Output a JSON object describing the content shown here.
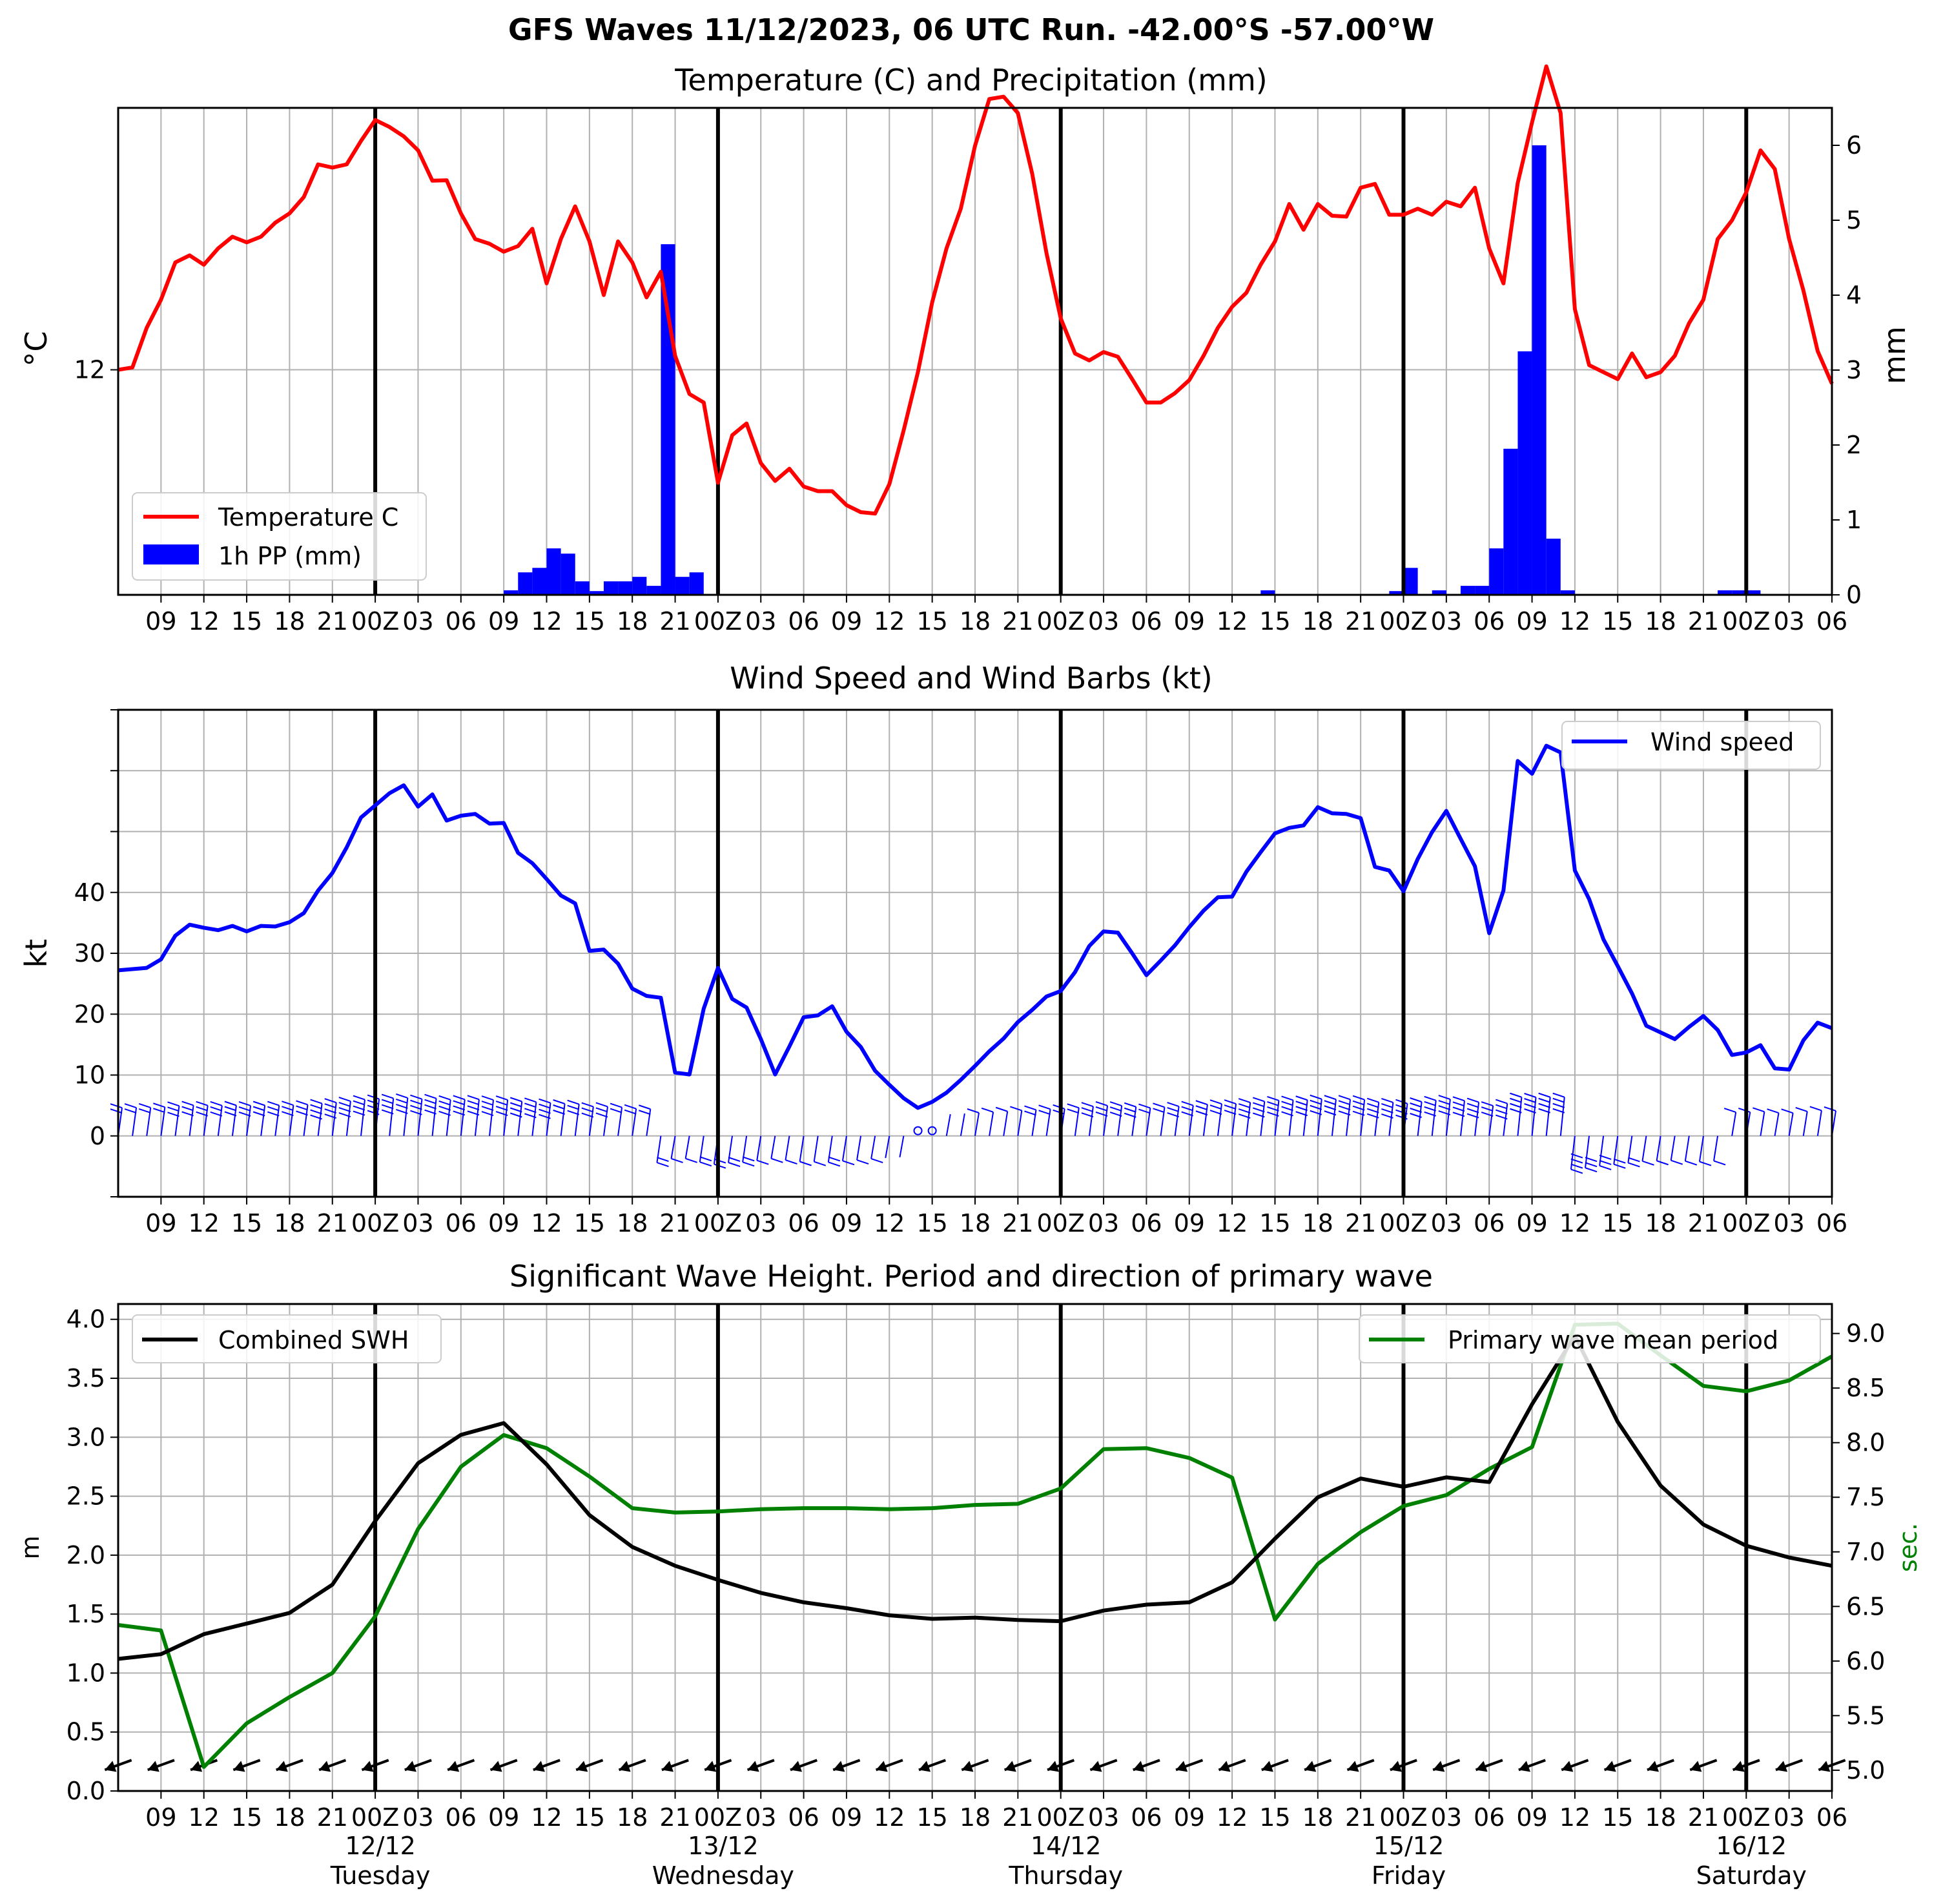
{
  "title": "GFS Waves 11/12/2023, 06 UTC Run. -42.00°S -57.00°W",
  "time_axis": {
    "tick_labels": [
      "09",
      "12",
      "15",
      "18",
      "21",
      "00Z",
      "03",
      "06",
      "09",
      "12",
      "15",
      "18",
      "21",
      "00Z",
      "03",
      "06",
      "09",
      "12",
      "15",
      "18",
      "21",
      "00Z",
      "03",
      "06",
      "09",
      "12",
      "15",
      "18",
      "21",
      "00Z",
      "03",
      "06",
      "09",
      "12",
      "15",
      "18",
      "21",
      "00Z",
      "03",
      "06"
    ],
    "day_labels": [
      {
        "date": "12/12",
        "weekday": "Tuesday"
      },
      {
        "date": "13/12",
        "weekday": "Wednesday"
      },
      {
        "date": "14/12",
        "weekday": "Thursday"
      },
      {
        "date": "15/12",
        "weekday": "Friday"
      },
      {
        "date": "16/12",
        "weekday": "Saturday"
      }
    ]
  },
  "colors": {
    "temperature": "#ff0000",
    "precip": "#0000ff",
    "wind": "#0000ff",
    "swh": "#000000",
    "period": "#008000",
    "midnight_line": "#000000",
    "grid": "#b0b0b0"
  },
  "chart_data": [
    {
      "type": "line",
      "title": "Temperature (C) and Precipitation (mm)",
      "ylabel": "°C",
      "y2label": "mm",
      "ylim": [
        7.18,
        17.61
      ],
      "y_ticks": [
        12
      ],
      "y2lim": [
        0,
        6.5
      ],
      "y2_ticks": [
        0,
        1,
        2,
        3,
        4,
        5,
        6
      ],
      "grid": true,
      "legend": {
        "position": "lower-left",
        "entries": [
          "Temperature C",
          "1h PP (mm)"
        ]
      },
      "series": [
        {
          "name": "Temperature C",
          "x_hours_from_06z_11_12": [
            0,
            1,
            2,
            3,
            4,
            5,
            6,
            7,
            8,
            9,
            10,
            11,
            12,
            13,
            14,
            15,
            16,
            17,
            18,
            19,
            20,
            21,
            22,
            23,
            24,
            25,
            26,
            27,
            28,
            29,
            30,
            31,
            32,
            33,
            34,
            35,
            36,
            37,
            38,
            39,
            40,
            41,
            42,
            43,
            44,
            45,
            46,
            47,
            48,
            49,
            50,
            51,
            52,
            53,
            54,
            55,
            56,
            57,
            58,
            59,
            60,
            61,
            62,
            63,
            64,
            65,
            66,
            67,
            68,
            69,
            70,
            71,
            72,
            73,
            74,
            75,
            76,
            77,
            78,
            79,
            80,
            81,
            82,
            83,
            84,
            85,
            86,
            87,
            88,
            89,
            90,
            91,
            92,
            93,
            94,
            95,
            96,
            97,
            98,
            99,
            100,
            101,
            102,
            103,
            104,
            105,
            106,
            107,
            108,
            109,
            110,
            111,
            112,
            113,
            114,
            115,
            116,
            117,
            118,
            119,
            120
          ],
          "values": [
            12.0,
            12.05,
            12.9,
            13.5,
            14.3,
            14.45,
            14.25,
            14.6,
            14.85,
            14.73,
            14.85,
            15.15,
            15.35,
            15.7,
            16.4,
            16.33,
            16.4,
            16.9,
            17.35,
            17.2,
            17.0,
            16.7,
            16.05,
            16.06,
            15.35,
            14.8,
            14.7,
            14.53,
            14.65,
            15.02,
            13.85,
            14.8,
            15.5,
            14.75,
            13.6,
            14.75,
            14.3,
            13.55,
            14.1,
            12.3,
            11.48,
            11.3,
            9.58,
            10.6,
            10.85,
            10.0,
            9.62,
            9.88,
            9.5,
            9.4,
            9.4,
            9.1,
            8.95,
            8.92,
            9.55,
            10.7,
            11.95,
            13.45,
            14.6,
            15.45,
            16.8,
            17.8,
            17.85,
            17.5,
            16.2,
            14.5,
            13.1,
            12.35,
            12.2,
            12.38,
            12.28,
            11.8,
            11.3,
            11.3,
            11.5,
            11.78,
            12.3,
            12.9,
            13.35,
            13.65,
            14.25,
            14.75,
            15.55,
            15.0,
            15.55,
            15.3,
            15.28,
            15.9,
            15.98,
            15.32,
            15.32,
            15.45,
            15.32,
            15.6,
            15.5,
            15.9,
            14.6,
            13.85,
            16.0,
            17.3,
            18.5,
            17.5,
            13.3,
            12.1,
            11.95,
            11.8,
            12.35,
            11.84,
            11.95,
            12.3,
            13.0,
            13.5,
            14.8,
            15.2,
            15.8,
            16.7,
            16.3,
            14.8,
            13.7,
            12.4,
            11.7
          ]
        },
        {
          "name": "1h PP (mm)",
          "type": "bar",
          "axis": "right",
          "bars": [
            {
              "x": 27.5,
              "value": 0.06
            },
            {
              "x": 28.5,
              "value": 0.3
            },
            {
              "x": 29.5,
              "value": 0.36
            },
            {
              "x": 30.5,
              "value": 0.62
            },
            {
              "x": 31.5,
              "value": 0.55
            },
            {
              "x": 32.5,
              "value": 0.18
            },
            {
              "x": 33.5,
              "value": 0.05
            },
            {
              "x": 34.5,
              "value": 0.18
            },
            {
              "x": 35.5,
              "value": 0.18
            },
            {
              "x": 36.5,
              "value": 0.24
            },
            {
              "x": 37.5,
              "value": 0.12
            },
            {
              "x": 38.5,
              "value": 4.68
            },
            {
              "x": 39.5,
              "value": 0.24
            },
            {
              "x": 40.5,
              "value": 0.3
            },
            {
              "x": 80.5,
              "value": 0.06
            },
            {
              "x": 89.5,
              "value": 0.05
            },
            {
              "x": 90.5,
              "value": 0.36
            },
            {
              "x": 92.5,
              "value": 0.06
            },
            {
              "x": 94.5,
              "value": 0.12
            },
            {
              "x": 95.5,
              "value": 0.12
            },
            {
              "x": 96.5,
              "value": 0.62
            },
            {
              "x": 97.5,
              "value": 1.95
            },
            {
              "x": 98.5,
              "value": 3.25
            },
            {
              "x": 99.5,
              "value": 6.0
            },
            {
              "x": 100.5,
              "value": 0.75
            },
            {
              "x": 101.5,
              "value": 0.06
            },
            {
              "x": 112.5,
              "value": 0.06
            },
            {
              "x": 113.5,
              "value": 0.06
            },
            {
              "x": 114.5,
              "value": 0.06
            }
          ]
        }
      ]
    },
    {
      "type": "line",
      "title": "Wind Speed and Wind Barbs (kt)",
      "ylabel": "kt",
      "ylim": [
        -10,
        70
      ],
      "y_ticks": [
        0,
        10,
        20,
        30,
        40
      ],
      "grid": true,
      "legend": {
        "position": "top-right",
        "entries": [
          "Wind speed"
        ]
      },
      "series": [
        {
          "name": "Wind speed",
          "x_hours_from_06z_11_12": [
            0,
            1,
            2,
            3,
            4,
            5,
            6,
            7,
            8,
            9,
            10,
            11,
            12,
            13,
            14,
            15,
            16,
            17,
            18,
            19,
            20,
            21,
            22,
            23,
            24,
            25,
            26,
            27,
            28,
            29,
            30,
            31,
            32,
            33,
            34,
            35,
            36,
            37,
            38,
            39,
            40,
            41,
            42,
            43,
            44,
            45,
            46,
            47,
            48,
            49,
            50,
            51,
            52,
            53,
            54,
            55,
            56,
            57,
            58,
            59,
            60,
            61,
            62,
            63,
            64,
            65,
            66,
            67,
            68,
            69,
            70,
            71,
            72,
            73,
            74,
            75,
            76,
            77,
            78,
            79,
            80,
            81,
            82,
            83,
            84,
            85,
            86,
            87,
            88,
            89,
            90,
            91,
            92,
            93,
            94,
            95,
            96,
            97,
            98,
            99,
            100,
            101,
            102,
            103,
            104,
            105,
            106,
            107,
            108,
            109,
            110,
            111,
            112,
            113,
            114,
            115,
            116,
            117,
            118,
            119,
            120
          ],
          "values": [
            27.2,
            27.4,
            27.6,
            29.0,
            32.9,
            34.7,
            34.2,
            33.8,
            34.5,
            33.6,
            34.5,
            34.4,
            35.1,
            36.6,
            40.3,
            43.2,
            47.4,
            52.3,
            54.3,
            56.3,
            57.6,
            54.1,
            56.1,
            51.8,
            52.6,
            52.9,
            51.3,
            51.4,
            46.5,
            44.8,
            42.2,
            39.5,
            38.2,
            30.4,
            30.6,
            28.3,
            24.2,
            23.0,
            22.7,
            10.4,
            10.1,
            20.9,
            27.6,
            22.5,
            21.1,
            15.9,
            10.1,
            14.7,
            19.5,
            19.8,
            21.3,
            17.1,
            14.6,
            10.7,
            8.4,
            6.2,
            4.6,
            5.6,
            7.1,
            9.2,
            11.5,
            13.9,
            16.0,
            18.7,
            20.7,
            22.9,
            23.8,
            26.9,
            31.2,
            33.6,
            33.4,
            30.0,
            26.4,
            28.8,
            31.3,
            34.3,
            37.0,
            39.2,
            39.3,
            43.4,
            46.6,
            49.7,
            50.6,
            51.0,
            54.0,
            53.0,
            52.9,
            52.2,
            44.2,
            43.6,
            40.2,
            45.5,
            49.9,
            53.4,
            48.8,
            44.3,
            33.3,
            40.3,
            61.6,
            59.5,
            64.1,
            63.0,
            43.6,
            38.9,
            32.3,
            27.9,
            23.4,
            18.1,
            17.0,
            15.9,
            17.9,
            19.7,
            17.4,
            13.3,
            13.7,
            14.9,
            11.1,
            10.9,
            15.7,
            18.6,
            17.7
          ]
        }
      ]
    },
    {
      "type": "line",
      "title": "Significant Wave Height. Period and direction of primary wave",
      "ylabel": "m",
      "y2label": "sec.",
      "ylim": [
        0.0,
        4.13
      ],
      "y_ticks": [
        0.0,
        0.5,
        1.0,
        1.5,
        2.0,
        2.5,
        3.0,
        3.5,
        4.0
      ],
      "y2lim": [
        4.81,
        9.27
      ],
      "y2_ticks": [
        5.0,
        5.5,
        6.0,
        6.5,
        7.0,
        7.5,
        8.0,
        8.5,
        9.0
      ],
      "grid": true,
      "legend": {
        "left": {
          "position": "top-left",
          "entries": [
            "Combined SWH"
          ]
        },
        "right": {
          "position": "top-right",
          "entries": [
            "Primary wave mean period"
          ]
        }
      },
      "series": [
        {
          "name": "Combined SWH",
          "axis": "left",
          "x_hours_from_06z_11_12": [
            0,
            3,
            6,
            9,
            12,
            15,
            18,
            21,
            24,
            27,
            30,
            33,
            36,
            39,
            42,
            45,
            48,
            51,
            54,
            57,
            60,
            63,
            66,
            69,
            72,
            75,
            78,
            81,
            84,
            87,
            90,
            93,
            96,
            99,
            102,
            105,
            108,
            111,
            114,
            117,
            120
          ],
          "values": [
            1.12,
            1.16,
            1.33,
            1.42,
            1.51,
            1.75,
            2.29,
            2.78,
            3.02,
            3.12,
            2.77,
            2.34,
            2.07,
            1.91,
            1.79,
            1.68,
            1.6,
            1.55,
            1.49,
            1.46,
            1.47,
            1.45,
            1.44,
            1.53,
            1.58,
            1.6,
            1.77,
            2.14,
            2.49,
            2.65,
            2.58,
            2.66,
            2.62,
            3.28,
            3.86,
            3.13,
            2.59,
            2.26,
            2.08,
            1.98,
            1.91
          ]
        },
        {
          "name": "Primary wave mean period",
          "axis": "right",
          "x_hours_from_06z_11_12": [
            0,
            3,
            6,
            9,
            12,
            15,
            18,
            21,
            24,
            27,
            30,
            33,
            36,
            39,
            42,
            45,
            48,
            51,
            54,
            57,
            60,
            63,
            66,
            69,
            72,
            75,
            78,
            81,
            84,
            87,
            90,
            93,
            96,
            99,
            102,
            105,
            108,
            111,
            114,
            117,
            120
          ],
          "values": [
            6.33,
            6.28,
            5.03,
            5.43,
            5.67,
            5.89,
            6.41,
            7.21,
            7.78,
            8.07,
            7.95,
            7.69,
            7.4,
            7.36,
            7.37,
            7.39,
            7.4,
            7.4,
            7.39,
            7.4,
            7.43,
            7.44,
            7.58,
            7.94,
            7.95,
            7.86,
            7.68,
            6.38,
            6.89,
            7.18,
            7.42,
            7.52,
            7.76,
            7.96,
            9.08,
            9.09,
            8.8,
            8.52,
            8.47,
            8.57,
            8.79
          ]
        }
      ]
    }
  ]
}
